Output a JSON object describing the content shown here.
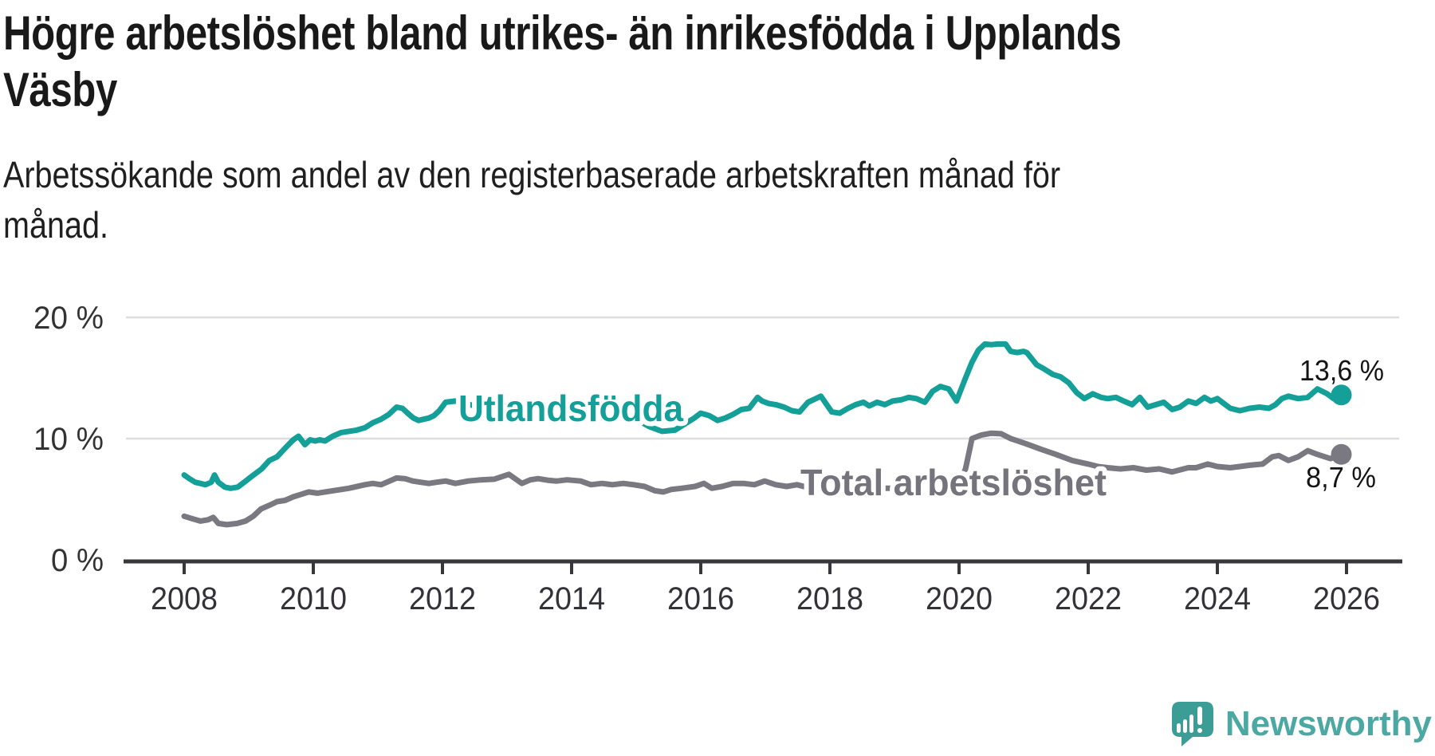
{
  "header": {
    "title": "Högre arbetslöshet bland utrikes- än inrikesfödda i Upplands Väsby",
    "title_lines": [
      "Högre arbetslöshet bland utrikes- än inrikesfödda i Upplands",
      "Väsby"
    ],
    "subtitle": "Arbetssökande som andel av den registerbaserade arbetskraften månad för månad.",
    "subtitle_lines": [
      "Arbetssökande som andel av den registerbaserade arbetskraften månad för",
      "månad."
    ]
  },
  "chart_data": {
    "type": "line",
    "title": "Högre arbetslöshet bland utrikes- än inrikesfödda i Upplands Väsby",
    "subtitle": "Arbetssökande som andel av den registerbaserade arbetskraften månad för månad.",
    "xlabel": "",
    "ylabel": "",
    "x_range": [
      2008,
      2026
    ],
    "ylim": [
      0,
      22
    ],
    "grid": "horizontal-only",
    "legend_position": "inline-labels-on-lines",
    "x_axis": {
      "ticks": [
        {
          "year": 2008,
          "label": "2008"
        },
        {
          "year": 2010,
          "label": "2010"
        },
        {
          "year": 2012,
          "label": "2012"
        },
        {
          "year": 2014,
          "label": "2014"
        },
        {
          "year": 2016,
          "label": "2016"
        },
        {
          "year": 2018,
          "label": "2018"
        },
        {
          "year": 2020,
          "label": "2020"
        },
        {
          "year": 2022,
          "label": "2022"
        },
        {
          "year": 2024,
          "label": "2024"
        },
        {
          "year": 2026,
          "label": "2026"
        }
      ]
    },
    "y_axis": {
      "ticks": [
        {
          "value": 0,
          "label": "0 %"
        },
        {
          "value": 10,
          "label": "10 %"
        },
        {
          "value": 20,
          "label": "20 %"
        }
      ]
    },
    "series": [
      {
        "name": "Utlandsfödda",
        "color": "#14A098",
        "end_label": "13,6 %",
        "end_value": 13.6,
        "points": [
          [
            2008.0,
            7.0
          ],
          [
            2008.08,
            6.7
          ],
          [
            2008.17,
            6.4
          ],
          [
            2008.25,
            6.3
          ],
          [
            2008.33,
            6.2
          ],
          [
            2008.42,
            6.4
          ],
          [
            2008.47,
            7.0
          ],
          [
            2008.53,
            6.4
          ],
          [
            2008.63,
            6.0
          ],
          [
            2008.72,
            5.9
          ],
          [
            2008.83,
            6.0
          ],
          [
            2008.93,
            6.4
          ],
          [
            2009.0,
            6.7
          ],
          [
            2009.1,
            7.1
          ],
          [
            2009.2,
            7.5
          ],
          [
            2009.32,
            8.2
          ],
          [
            2009.44,
            8.5
          ],
          [
            2009.56,
            9.2
          ],
          [
            2009.69,
            9.9
          ],
          [
            2009.77,
            10.2
          ],
          [
            2009.87,
            9.5
          ],
          [
            2009.95,
            9.9
          ],
          [
            2010.03,
            9.8
          ],
          [
            2010.1,
            9.9
          ],
          [
            2010.18,
            9.8
          ],
          [
            2010.3,
            10.2
          ],
          [
            2010.43,
            10.5
          ],
          [
            2010.55,
            10.6
          ],
          [
            2010.67,
            10.7
          ],
          [
            2010.8,
            10.9
          ],
          [
            2010.92,
            11.3
          ],
          [
            2011.05,
            11.6
          ],
          [
            2011.17,
            12.0
          ],
          [
            2011.29,
            12.6
          ],
          [
            2011.38,
            12.5
          ],
          [
            2011.46,
            12.1
          ],
          [
            2011.55,
            11.7
          ],
          [
            2011.63,
            11.5
          ],
          [
            2011.71,
            11.6
          ],
          [
            2011.79,
            11.7
          ],
          [
            2011.87,
            11.9
          ],
          [
            2011.95,
            12.3
          ],
          [
            2012.05,
            13.0
          ],
          [
            2012.2,
            13.1
          ],
          [
            2012.35,
            12.9
          ],
          [
            2012.5,
            12.7
          ],
          [
            2012.65,
            12.8
          ],
          [
            2012.8,
            12.9
          ],
          [
            2013.0,
            13.1
          ],
          [
            2013.2,
            13.0
          ],
          [
            2013.4,
            12.8
          ],
          [
            2013.6,
            12.9
          ],
          [
            2013.8,
            12.7
          ],
          [
            2014.0,
            12.6
          ],
          [
            2014.2,
            12.4
          ],
          [
            2014.4,
            12.3
          ],
          [
            2014.6,
            12.2
          ],
          [
            2014.8,
            12.0
          ],
          [
            2015.0,
            11.6
          ],
          [
            2015.2,
            11.0
          ],
          [
            2015.4,
            10.6
          ],
          [
            2015.6,
            10.7
          ],
          [
            2015.75,
            11.2
          ],
          [
            2015.9,
            11.7
          ],
          [
            2016.0,
            12.1
          ],
          [
            2016.13,
            11.9
          ],
          [
            2016.26,
            11.5
          ],
          [
            2016.38,
            11.7
          ],
          [
            2016.5,
            12.0
          ],
          [
            2016.63,
            12.4
          ],
          [
            2016.75,
            12.5
          ],
          [
            2016.88,
            13.4
          ],
          [
            2016.95,
            13.1
          ],
          [
            2017.05,
            12.9
          ],
          [
            2017.16,
            12.8
          ],
          [
            2017.29,
            12.6
          ],
          [
            2017.41,
            12.3
          ],
          [
            2017.53,
            12.2
          ],
          [
            2017.66,
            13.0
          ],
          [
            2017.74,
            13.2
          ],
          [
            2017.86,
            13.5
          ],
          [
            2017.95,
            12.8
          ],
          [
            2018.03,
            12.2
          ],
          [
            2018.15,
            12.1
          ],
          [
            2018.28,
            12.5
          ],
          [
            2018.4,
            12.8
          ],
          [
            2018.52,
            13.0
          ],
          [
            2018.61,
            12.7
          ],
          [
            2018.73,
            13.0
          ],
          [
            2018.85,
            12.8
          ],
          [
            2018.97,
            13.1
          ],
          [
            2019.1,
            13.2
          ],
          [
            2019.22,
            13.4
          ],
          [
            2019.34,
            13.3
          ],
          [
            2019.47,
            13.0
          ],
          [
            2019.59,
            13.9
          ],
          [
            2019.71,
            14.3
          ],
          [
            2019.84,
            14.1
          ],
          [
            2019.96,
            13.1
          ],
          [
            2020.1,
            15.0
          ],
          [
            2020.2,
            16.3
          ],
          [
            2020.3,
            17.3
          ],
          [
            2020.4,
            17.8
          ],
          [
            2020.5,
            17.75
          ],
          [
            2020.6,
            17.8
          ],
          [
            2020.72,
            17.8
          ],
          [
            2020.8,
            17.2
          ],
          [
            2020.9,
            17.1
          ],
          [
            2021.0,
            17.2
          ],
          [
            2021.05,
            17.1
          ],
          [
            2021.2,
            16.1
          ],
          [
            2021.3,
            15.8
          ],
          [
            2021.45,
            15.3
          ],
          [
            2021.57,
            15.1
          ],
          [
            2021.7,
            14.6
          ],
          [
            2021.82,
            13.8
          ],
          [
            2021.94,
            13.3
          ],
          [
            2022.07,
            13.7
          ],
          [
            2022.2,
            13.4
          ],
          [
            2022.3,
            13.3
          ],
          [
            2022.43,
            13.4
          ],
          [
            2022.55,
            13.1
          ],
          [
            2022.68,
            12.8
          ],
          [
            2022.8,
            13.4
          ],
          [
            2022.92,
            12.6
          ],
          [
            2023.05,
            12.8
          ],
          [
            2023.17,
            13.0
          ],
          [
            2023.3,
            12.4
          ],
          [
            2023.42,
            12.6
          ],
          [
            2023.55,
            13.1
          ],
          [
            2023.67,
            12.9
          ],
          [
            2023.8,
            13.4
          ],
          [
            2023.9,
            13.1
          ],
          [
            2024.0,
            13.3
          ],
          [
            2024.1,
            12.9
          ],
          [
            2024.2,
            12.5
          ],
          [
            2024.35,
            12.3
          ],
          [
            2024.5,
            12.5
          ],
          [
            2024.65,
            12.6
          ],
          [
            2024.8,
            12.5
          ],
          [
            2024.9,
            12.8
          ],
          [
            2025.0,
            13.3
          ],
          [
            2025.1,
            13.5
          ],
          [
            2025.25,
            13.3
          ],
          [
            2025.4,
            13.4
          ],
          [
            2025.55,
            14.1
          ],
          [
            2025.7,
            13.7
          ],
          [
            2025.8,
            13.3
          ],
          [
            2025.9,
            13.1
          ],
          [
            2025.92,
            13.6
          ]
        ]
      },
      {
        "name": "Total arbetslöshet",
        "color": "#7A7880",
        "end_label": "8,7 %",
        "end_value": 8.7,
        "points": [
          [
            2008.0,
            3.6
          ],
          [
            2008.12,
            3.4
          ],
          [
            2008.25,
            3.2
          ],
          [
            2008.37,
            3.3
          ],
          [
            2008.45,
            3.5
          ],
          [
            2008.53,
            3.0
          ],
          [
            2008.66,
            2.9
          ],
          [
            2008.82,
            3.0
          ],
          [
            2008.95,
            3.2
          ],
          [
            2009.07,
            3.6
          ],
          [
            2009.19,
            4.2
          ],
          [
            2009.32,
            4.5
          ],
          [
            2009.44,
            4.8
          ],
          [
            2009.56,
            4.9
          ],
          [
            2009.69,
            5.2
          ],
          [
            2009.81,
            5.4
          ],
          [
            2009.93,
            5.6
          ],
          [
            2010.06,
            5.5
          ],
          [
            2010.18,
            5.6
          ],
          [
            2010.3,
            5.7
          ],
          [
            2010.55,
            5.9
          ],
          [
            2010.8,
            6.2
          ],
          [
            2010.92,
            6.3
          ],
          [
            2011.05,
            6.2
          ],
          [
            2011.29,
            6.75
          ],
          [
            2011.42,
            6.7
          ],
          [
            2011.54,
            6.5
          ],
          [
            2011.66,
            6.4
          ],
          [
            2011.79,
            6.3
          ],
          [
            2011.91,
            6.4
          ],
          [
            2012.05,
            6.5
          ],
          [
            2012.2,
            6.3
          ],
          [
            2012.4,
            6.5
          ],
          [
            2012.6,
            6.6
          ],
          [
            2012.8,
            6.65
          ],
          [
            2013.03,
            7.05
          ],
          [
            2013.23,
            6.3
          ],
          [
            2013.36,
            6.6
          ],
          [
            2013.48,
            6.7
          ],
          [
            2013.65,
            6.55
          ],
          [
            2013.77,
            6.5
          ],
          [
            2013.93,
            6.6
          ],
          [
            2014.14,
            6.5
          ],
          [
            2014.3,
            6.2
          ],
          [
            2014.47,
            6.3
          ],
          [
            2014.63,
            6.2
          ],
          [
            2014.8,
            6.3
          ],
          [
            2014.96,
            6.2
          ],
          [
            2015.13,
            6.05
          ],
          [
            2015.29,
            5.7
          ],
          [
            2015.42,
            5.6
          ],
          [
            2015.54,
            5.8
          ],
          [
            2015.7,
            5.9
          ],
          [
            2015.91,
            6.05
          ],
          [
            2016.05,
            6.3
          ],
          [
            2016.17,
            5.9
          ],
          [
            2016.33,
            6.05
          ],
          [
            2016.5,
            6.3
          ],
          [
            2016.66,
            6.3
          ],
          [
            2016.83,
            6.2
          ],
          [
            2016.99,
            6.5
          ],
          [
            2017.16,
            6.2
          ],
          [
            2017.33,
            6.05
          ],
          [
            2017.49,
            6.2
          ],
          [
            2017.78,
            5.8
          ],
          [
            2018.15,
            6.05
          ],
          [
            2018.4,
            6.0
          ],
          [
            2018.7,
            5.9
          ],
          [
            2019.0,
            5.9
          ],
          [
            2019.3,
            5.8
          ],
          [
            2019.6,
            5.9
          ],
          [
            2019.9,
            6.1
          ],
          [
            2020.0,
            6.3
          ],
          [
            2020.1,
            7.5
          ],
          [
            2020.2,
            10.0
          ],
          [
            2020.35,
            10.3
          ],
          [
            2020.5,
            10.45
          ],
          [
            2020.65,
            10.4
          ],
          [
            2020.8,
            10.0
          ],
          [
            2021.05,
            9.55
          ],
          [
            2021.28,
            9.1
          ],
          [
            2021.5,
            8.7
          ],
          [
            2021.75,
            8.2
          ],
          [
            2022.0,
            7.9
          ],
          [
            2022.15,
            7.7
          ],
          [
            2022.3,
            7.6
          ],
          [
            2022.5,
            7.5
          ],
          [
            2022.7,
            7.6
          ],
          [
            2022.9,
            7.4
          ],
          [
            2023.1,
            7.5
          ],
          [
            2023.3,
            7.25
          ],
          [
            2023.55,
            7.6
          ],
          [
            2023.67,
            7.6
          ],
          [
            2023.85,
            7.9
          ],
          [
            2024.0,
            7.7
          ],
          [
            2024.2,
            7.6
          ],
          [
            2024.35,
            7.7
          ],
          [
            2024.5,
            7.8
          ],
          [
            2024.7,
            7.9
          ],
          [
            2024.85,
            8.5
          ],
          [
            2024.95,
            8.6
          ],
          [
            2025.1,
            8.2
          ],
          [
            2025.25,
            8.5
          ],
          [
            2025.4,
            9.0
          ],
          [
            2025.55,
            8.7
          ],
          [
            2025.75,
            8.35
          ],
          [
            2025.92,
            8.7
          ]
        ]
      }
    ]
  },
  "branding": {
    "logo_text": "Newsworthy",
    "logo_icon": "newsworthy-speech-bubble-bar-chart-icon",
    "logo_color": "#4BA8A2",
    "bubble_color": "#3C9D96"
  },
  "colors": {
    "accent_teal": "#14A098",
    "series_gray": "#7A7880",
    "axis": "#39373C",
    "gridline": "#DEDEDE"
  }
}
